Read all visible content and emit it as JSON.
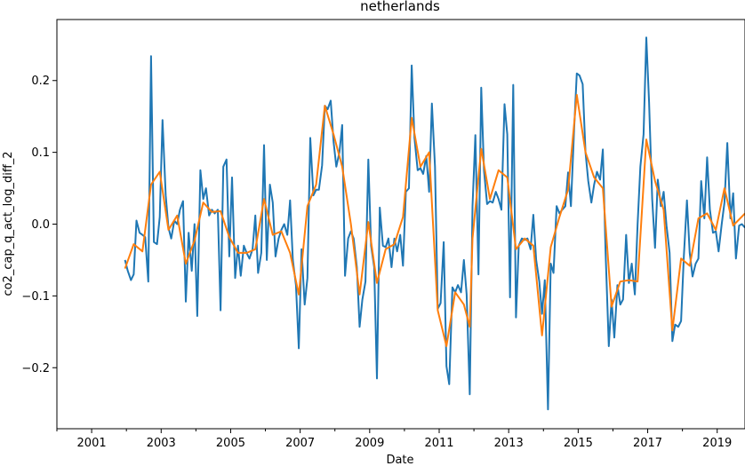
{
  "chart_data": {
    "type": "line",
    "title": "netherlands",
    "xlabel": "Date",
    "ylabel": "co2_cap_q_act_log_diff_2",
    "xlim": [
      2000.0,
      2019.8
    ],
    "ylim": [
      -0.285,
      0.285
    ],
    "x_ticks": [
      2001,
      2003,
      2005,
      2007,
      2009,
      2011,
      2013,
      2015,
      2017,
      2019
    ],
    "x_tick_labels": [
      "2001",
      "2003",
      "2005",
      "2007",
      "2009",
      "2011",
      "2013",
      "2015",
      "2017",
      "2019"
    ],
    "y_ticks": [
      -0.2,
      -0.1,
      0.0,
      0.1,
      0.2
    ],
    "y_tick_labels": [
      "−0.2",
      "−0.1",
      "0.0",
      "0.1",
      "0.2"
    ],
    "grid": false,
    "legend": false,
    "series": [
      {
        "color": "#1f77b4",
        "points": [
          [
            2001.96,
            -0.05
          ],
          [
            2002.04,
            -0.065
          ],
          [
            2002.13,
            -0.078
          ],
          [
            2002.21,
            -0.07
          ],
          [
            2002.29,
            0.005
          ],
          [
            2002.38,
            -0.012
          ],
          [
            2002.46,
            -0.015
          ],
          [
            2002.54,
            -0.018
          ],
          [
            2002.63,
            -0.08
          ],
          [
            2002.71,
            0.234
          ],
          [
            2002.79,
            -0.025
          ],
          [
            2002.88,
            -0.028
          ],
          [
            2002.96,
            0.01
          ],
          [
            2003.04,
            0.145
          ],
          [
            2003.13,
            0.04
          ],
          [
            2003.21,
            -0.005
          ],
          [
            2003.29,
            -0.02
          ],
          [
            2003.38,
            0.005
          ],
          [
            2003.46,
            0.0
          ],
          [
            2003.54,
            0.02
          ],
          [
            2003.63,
            0.032
          ],
          [
            2003.71,
            -0.108
          ],
          [
            2003.79,
            -0.012
          ],
          [
            2003.88,
            -0.065
          ],
          [
            2003.96,
            0.0
          ],
          [
            2004.04,
            -0.128
          ],
          [
            2004.13,
            0.075
          ],
          [
            2004.21,
            0.035
          ],
          [
            2004.29,
            0.05
          ],
          [
            2004.38,
            0.012
          ],
          [
            2004.46,
            0.02
          ],
          [
            2004.54,
            0.015
          ],
          [
            2004.63,
            0.02
          ],
          [
            2004.71,
            -0.12
          ],
          [
            2004.79,
            0.08
          ],
          [
            2004.88,
            0.09
          ],
          [
            2004.96,
            -0.045
          ],
          [
            2005.04,
            0.065
          ],
          [
            2005.13,
            -0.075
          ],
          [
            2005.21,
            -0.03
          ],
          [
            2005.29,
            -0.072
          ],
          [
            2005.38,
            -0.03
          ],
          [
            2005.46,
            -0.04
          ],
          [
            2005.54,
            -0.048
          ],
          [
            2005.63,
            -0.035
          ],
          [
            2005.71,
            0.012
          ],
          [
            2005.79,
            -0.068
          ],
          [
            2005.88,
            -0.04
          ],
          [
            2005.96,
            0.11
          ],
          [
            2006.04,
            -0.05
          ],
          [
            2006.13,
            0.055
          ],
          [
            2006.21,
            0.03
          ],
          [
            2006.29,
            -0.045
          ],
          [
            2006.38,
            -0.02
          ],
          [
            2006.46,
            -0.008
          ],
          [
            2006.54,
            0.0
          ],
          [
            2006.63,
            -0.015
          ],
          [
            2006.71,
            0.033
          ],
          [
            2006.79,
            -0.05
          ],
          [
            2006.88,
            -0.085
          ],
          [
            2006.96,
            -0.173
          ],
          [
            2007.04,
            -0.035
          ],
          [
            2007.13,
            -0.112
          ],
          [
            2007.21,
            -0.075
          ],
          [
            2007.29,
            0.12
          ],
          [
            2007.38,
            0.04
          ],
          [
            2007.46,
            0.048
          ],
          [
            2007.54,
            0.048
          ],
          [
            2007.63,
            0.082
          ],
          [
            2007.71,
            0.165
          ],
          [
            2007.79,
            0.16
          ],
          [
            2007.88,
            0.172
          ],
          [
            2007.96,
            0.115
          ],
          [
            2008.04,
            0.08
          ],
          [
            2008.13,
            0.1
          ],
          [
            2008.21,
            0.138
          ],
          [
            2008.29,
            -0.072
          ],
          [
            2008.38,
            -0.02
          ],
          [
            2008.46,
            -0.01
          ],
          [
            2008.54,
            -0.02
          ],
          [
            2008.63,
            -0.06
          ],
          [
            2008.71,
            -0.143
          ],
          [
            2008.79,
            -0.105
          ],
          [
            2008.88,
            -0.08
          ],
          [
            2008.96,
            0.09
          ],
          [
            2009.04,
            -0.03
          ],
          [
            2009.13,
            -0.06
          ],
          [
            2009.21,
            -0.215
          ],
          [
            2009.29,
            0.023
          ],
          [
            2009.38,
            -0.03
          ],
          [
            2009.46,
            -0.032
          ],
          [
            2009.54,
            -0.02
          ],
          [
            2009.63,
            -0.06
          ],
          [
            2009.71,
            -0.02
          ],
          [
            2009.79,
            -0.038
          ],
          [
            2009.88,
            -0.015
          ],
          [
            2009.96,
            -0.058
          ],
          [
            2010.04,
            0.045
          ],
          [
            2010.13,
            0.05
          ],
          [
            2010.21,
            0.221
          ],
          [
            2010.29,
            0.12
          ],
          [
            2010.38,
            0.075
          ],
          [
            2010.46,
            0.078
          ],
          [
            2010.54,
            0.07
          ],
          [
            2010.63,
            0.095
          ],
          [
            2010.71,
            0.045
          ],
          [
            2010.79,
            0.168
          ],
          [
            2010.88,
            0.08
          ],
          [
            2010.96,
            -0.118
          ],
          [
            2011.04,
            -0.11
          ],
          [
            2011.13,
            -0.025
          ],
          [
            2011.21,
            -0.198
          ],
          [
            2011.29,
            -0.223
          ],
          [
            2011.38,
            -0.088
          ],
          [
            2011.46,
            -0.095
          ],
          [
            2011.54,
            -0.085
          ],
          [
            2011.63,
            -0.095
          ],
          [
            2011.71,
            -0.05
          ],
          [
            2011.79,
            -0.098
          ],
          [
            2011.88,
            -0.237
          ],
          [
            2011.96,
            0.025
          ],
          [
            2012.04,
            0.124
          ],
          [
            2012.13,
            -0.07
          ],
          [
            2012.21,
            0.19
          ],
          [
            2012.29,
            0.075
          ],
          [
            2012.38,
            0.028
          ],
          [
            2012.46,
            0.032
          ],
          [
            2012.54,
            0.03
          ],
          [
            2012.63,
            0.045
          ],
          [
            2012.71,
            0.035
          ],
          [
            2012.79,
            0.02
          ],
          [
            2012.88,
            0.167
          ],
          [
            2012.96,
            0.125
          ],
          [
            2013.04,
            -0.102
          ],
          [
            2013.13,
            0.194
          ],
          [
            2013.21,
            -0.13
          ],
          [
            2013.29,
            -0.03
          ],
          [
            2013.38,
            -0.02
          ],
          [
            2013.46,
            -0.022
          ],
          [
            2013.54,
            -0.02
          ],
          [
            2013.63,
            -0.035
          ],
          [
            2013.71,
            0.013
          ],
          [
            2013.79,
            -0.05
          ],
          [
            2013.88,
            -0.08
          ],
          [
            2013.96,
            -0.125
          ],
          [
            2014.04,
            -0.078
          ],
          [
            2014.13,
            -0.258
          ],
          [
            2014.21,
            -0.055
          ],
          [
            2014.29,
            -0.068
          ],
          [
            2014.38,
            0.025
          ],
          [
            2014.46,
            0.015
          ],
          [
            2014.54,
            0.02
          ],
          [
            2014.63,
            0.025
          ],
          [
            2014.71,
            0.072
          ],
          [
            2014.79,
            0.025
          ],
          [
            2014.88,
            0.13
          ],
          [
            2014.96,
            0.21
          ],
          [
            2015.04,
            0.207
          ],
          [
            2015.13,
            0.195
          ],
          [
            2015.21,
            0.1
          ],
          [
            2015.29,
            0.06
          ],
          [
            2015.38,
            0.03
          ],
          [
            2015.46,
            0.055
          ],
          [
            2015.54,
            0.073
          ],
          [
            2015.63,
            0.062
          ],
          [
            2015.71,
            0.104
          ],
          [
            2015.79,
            -0.04
          ],
          [
            2015.88,
            -0.17
          ],
          [
            2015.96,
            -0.105
          ],
          [
            2016.04,
            -0.158
          ],
          [
            2016.13,
            -0.085
          ],
          [
            2016.21,
            -0.112
          ],
          [
            2016.29,
            -0.105
          ],
          [
            2016.38,
            -0.015
          ],
          [
            2016.46,
            -0.082
          ],
          [
            2016.54,
            -0.055
          ],
          [
            2016.63,
            -0.098
          ],
          [
            2016.71,
            0.0
          ],
          [
            2016.79,
            0.08
          ],
          [
            2016.88,
            0.125
          ],
          [
            2016.96,
            0.26
          ],
          [
            2017.04,
            0.17
          ],
          [
            2017.13,
            0.035
          ],
          [
            2017.21,
            -0.033
          ],
          [
            2017.29,
            0.062
          ],
          [
            2017.38,
            0.025
          ],
          [
            2017.46,
            0.045
          ],
          [
            2017.54,
            -0.002
          ],
          [
            2017.63,
            -0.04
          ],
          [
            2017.71,
            -0.163
          ],
          [
            2017.79,
            -0.14
          ],
          [
            2017.88,
            -0.143
          ],
          [
            2017.96,
            -0.135
          ],
          [
            2018.04,
            -0.045
          ],
          [
            2018.13,
            0.033
          ],
          [
            2018.21,
            -0.04
          ],
          [
            2018.29,
            -0.073
          ],
          [
            2018.38,
            -0.055
          ],
          [
            2018.46,
            -0.048
          ],
          [
            2018.54,
            0.06
          ],
          [
            2018.63,
            0.008
          ],
          [
            2018.71,
            0.093
          ],
          [
            2018.79,
            0.02
          ],
          [
            2018.88,
            -0.012
          ],
          [
            2018.96,
            -0.01
          ],
          [
            2019.04,
            -0.038
          ],
          [
            2019.13,
            0.0
          ],
          [
            2019.21,
            0.03
          ],
          [
            2019.29,
            0.113
          ],
          [
            2019.38,
            0.008
          ],
          [
            2019.46,
            0.043
          ],
          [
            2019.54,
            -0.048
          ],
          [
            2019.63,
            -0.002
          ],
          [
            2019.71,
            0.0
          ],
          [
            2019.8,
            -0.005
          ]
        ]
      },
      {
        "color": "#ff7f0e",
        "points": [
          [
            2001.96,
            -0.062
          ],
          [
            2002.21,
            -0.028
          ],
          [
            2002.46,
            -0.038
          ],
          [
            2002.71,
            0.055
          ],
          [
            2002.96,
            0.073
          ],
          [
            2003.21,
            -0.008
          ],
          [
            2003.46,
            0.012
          ],
          [
            2003.71,
            -0.055
          ],
          [
            2003.96,
            -0.023
          ],
          [
            2004.21,
            0.03
          ],
          [
            2004.46,
            0.017
          ],
          [
            2004.71,
            0.018
          ],
          [
            2004.96,
            -0.018
          ],
          [
            2005.21,
            -0.04
          ],
          [
            2005.46,
            -0.04
          ],
          [
            2005.71,
            -0.035
          ],
          [
            2005.96,
            0.035
          ],
          [
            2006.21,
            -0.015
          ],
          [
            2006.46,
            -0.01
          ],
          [
            2006.71,
            -0.04
          ],
          [
            2006.96,
            -0.098
          ],
          [
            2007.21,
            0.025
          ],
          [
            2007.46,
            0.055
          ],
          [
            2007.71,
            0.165
          ],
          [
            2007.96,
            0.125
          ],
          [
            2008.21,
            0.08
          ],
          [
            2008.46,
            0.0
          ],
          [
            2008.71,
            -0.098
          ],
          [
            2008.96,
            0.003
          ],
          [
            2009.21,
            -0.082
          ],
          [
            2009.46,
            -0.035
          ],
          [
            2009.71,
            -0.028
          ],
          [
            2009.96,
            0.01
          ],
          [
            2010.21,
            0.148
          ],
          [
            2010.46,
            0.08
          ],
          [
            2010.71,
            0.1
          ],
          [
            2010.96,
            -0.12
          ],
          [
            2011.21,
            -0.17
          ],
          [
            2011.46,
            -0.095
          ],
          [
            2011.71,
            -0.112
          ],
          [
            2011.88,
            -0.143
          ],
          [
            2011.96,
            -0.02
          ],
          [
            2012.21,
            0.105
          ],
          [
            2012.46,
            0.035
          ],
          [
            2012.71,
            0.075
          ],
          [
            2012.96,
            0.065
          ],
          [
            2013.21,
            -0.035
          ],
          [
            2013.46,
            -0.02
          ],
          [
            2013.71,
            -0.03
          ],
          [
            2013.96,
            -0.155
          ],
          [
            2014.21,
            -0.032
          ],
          [
            2014.46,
            0.01
          ],
          [
            2014.71,
            0.048
          ],
          [
            2014.96,
            0.18
          ],
          [
            2015.21,
            0.1
          ],
          [
            2015.46,
            0.065
          ],
          [
            2015.71,
            0.05
          ],
          [
            2015.96,
            -0.115
          ],
          [
            2016.21,
            -0.08
          ],
          [
            2016.46,
            -0.078
          ],
          [
            2016.71,
            -0.08
          ],
          [
            2016.96,
            0.118
          ],
          [
            2017.21,
            0.06
          ],
          [
            2017.46,
            0.02
          ],
          [
            2017.71,
            -0.148
          ],
          [
            2017.96,
            -0.048
          ],
          [
            2018.21,
            -0.058
          ],
          [
            2018.46,
            0.008
          ],
          [
            2018.71,
            0.015
          ],
          [
            2018.96,
            -0.008
          ],
          [
            2019.21,
            0.05
          ],
          [
            2019.46,
            -0.002
          ],
          [
            2019.8,
            0.015
          ]
        ]
      }
    ]
  }
}
